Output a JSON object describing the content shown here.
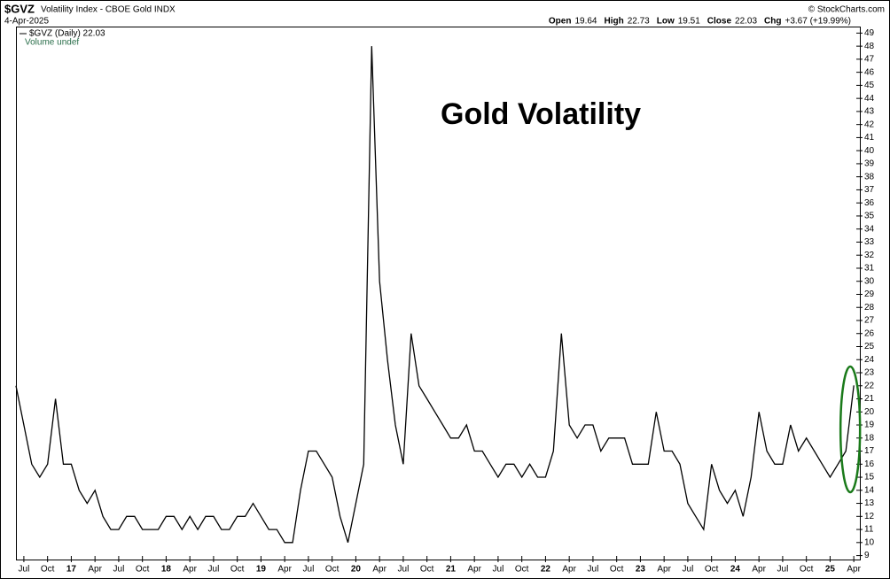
{
  "chart_data": {
    "type": "line",
    "symbol": "$GVZ",
    "name": "Volatility Index - CBOE Gold INDX",
    "date": "4-Apr-2025",
    "source": "© StockCharts.com",
    "quote": [
      {
        "label": "Open",
        "value": "19.64"
      },
      {
        "label": "High",
        "value": "22.73"
      },
      {
        "label": "Low",
        "value": "19.51"
      },
      {
        "label": "Close",
        "value": "22.03"
      },
      {
        "label": "Chg",
        "value": "+3.67 (+19.99%)"
      }
    ],
    "legend": [
      "$GVZ (Daily) 22.03",
      "Volume undef"
    ],
    "annotation": "Gold Volatility",
    "x": [
      "2016-06",
      "2016-07",
      "2016-08",
      "2016-09",
      "2016-10",
      "2016-11",
      "2016-12",
      "2017-01",
      "2017-02",
      "2017-03",
      "2017-04",
      "2017-05",
      "2017-06",
      "2017-07",
      "2017-08",
      "2017-09",
      "2017-10",
      "2017-11",
      "2017-12",
      "2018-01",
      "2018-02",
      "2018-03",
      "2018-04",
      "2018-05",
      "2018-06",
      "2018-07",
      "2018-08",
      "2018-09",
      "2018-10",
      "2018-11",
      "2018-12",
      "2019-01",
      "2019-02",
      "2019-03",
      "2019-04",
      "2019-05",
      "2019-06",
      "2019-07",
      "2019-08",
      "2019-09",
      "2019-10",
      "2019-11",
      "2019-12",
      "2020-01",
      "2020-02",
      "2020-03",
      "2020-04",
      "2020-05",
      "2020-06",
      "2020-07",
      "2020-08",
      "2020-09",
      "2020-10",
      "2020-11",
      "2020-12",
      "2021-01",
      "2021-02",
      "2021-03",
      "2021-04",
      "2021-05",
      "2021-06",
      "2021-07",
      "2021-08",
      "2021-09",
      "2021-10",
      "2021-11",
      "2021-12",
      "2022-01",
      "2022-02",
      "2022-03",
      "2022-04",
      "2022-05",
      "2022-06",
      "2022-07",
      "2022-08",
      "2022-09",
      "2022-10",
      "2022-11",
      "2022-12",
      "2023-01",
      "2023-02",
      "2023-03",
      "2023-04",
      "2023-05",
      "2023-06",
      "2023-07",
      "2023-08",
      "2023-09",
      "2023-10",
      "2023-11",
      "2023-12",
      "2024-01",
      "2024-02",
      "2024-03",
      "2024-04",
      "2024-05",
      "2024-06",
      "2024-07",
      "2024-08",
      "2024-09",
      "2024-10",
      "2024-11",
      "2024-12",
      "2025-01",
      "2025-02",
      "2025-03",
      "2025-04"
    ],
    "series": [
      {
        "name": "$GVZ",
        "color": "#000000",
        "values": [
          22,
          19,
          16,
          15,
          16,
          21,
          16,
          16,
          14,
          13,
          14,
          12,
          11,
          11,
          12,
          12,
          11,
          11,
          11,
          12,
          12,
          11,
          12,
          11,
          12,
          12,
          11,
          11,
          12,
          12,
          13,
          12,
          11,
          11,
          10,
          10,
          14,
          17,
          17,
          16,
          15,
          12,
          10,
          13,
          16,
          48,
          30,
          24,
          19,
          16,
          26,
          22,
          21,
          20,
          19,
          18,
          18,
          19,
          17,
          17,
          16,
          15,
          16,
          16,
          15,
          16,
          15,
          15,
          17,
          26,
          19,
          18,
          19,
          19,
          17,
          18,
          18,
          18,
          16,
          16,
          16,
          20,
          17,
          17,
          16,
          13,
          12,
          11,
          16,
          14,
          13,
          14,
          12,
          15,
          20,
          17,
          16,
          16,
          19,
          17,
          18,
          17,
          16,
          15,
          16,
          17,
          22.03
        ]
      }
    ],
    "ylim": [
      8.7,
      49.5
    ],
    "yticks": [
      9,
      10,
      11,
      12,
      13,
      14,
      15,
      16,
      17,
      18,
      19,
      20,
      21,
      22,
      23,
      24,
      25,
      26,
      27,
      28,
      29,
      30,
      31,
      32,
      33,
      34,
      35,
      36,
      37,
      38,
      39,
      40,
      41,
      42,
      43,
      44,
      45,
      46,
      47,
      48,
      49
    ],
    "xticks": [
      {
        "value": "2016-07",
        "label": "Jul"
      },
      {
        "value": "2016-10",
        "label": "Oct"
      },
      {
        "value": "2017-01",
        "label": "17"
      },
      {
        "value": "2017-04",
        "label": "Apr"
      },
      {
        "value": "2017-07",
        "label": "Jul"
      },
      {
        "value": "2017-10",
        "label": "Oct"
      },
      {
        "value": "2018-01",
        "label": "18"
      },
      {
        "value": "2018-04",
        "label": "Apr"
      },
      {
        "value": "2018-07",
        "label": "Jul"
      },
      {
        "value": "2018-10",
        "label": "Oct"
      },
      {
        "value": "2019-01",
        "label": "19"
      },
      {
        "value": "2019-04",
        "label": "Apr"
      },
      {
        "value": "2019-07",
        "label": "Jul"
      },
      {
        "value": "2019-10",
        "label": "Oct"
      },
      {
        "value": "2020-01",
        "label": "20"
      },
      {
        "value": "2020-04",
        "label": "Apr"
      },
      {
        "value": "2020-07",
        "label": "Jul"
      },
      {
        "value": "2020-10",
        "label": "Oct"
      },
      {
        "value": "2021-01",
        "label": "21"
      },
      {
        "value": "2021-04",
        "label": "Apr"
      },
      {
        "value": "2021-07",
        "label": "Jul"
      },
      {
        "value": "2021-10",
        "label": "Oct"
      },
      {
        "value": "2022-01",
        "label": "22"
      },
      {
        "value": "2022-04",
        "label": "Apr"
      },
      {
        "value": "2022-07",
        "label": "Jul"
      },
      {
        "value": "2022-10",
        "label": "Oct"
      },
      {
        "value": "2023-01",
        "label": "23"
      },
      {
        "value": "2023-04",
        "label": "Apr"
      },
      {
        "value": "2023-07",
        "label": "Jul"
      },
      {
        "value": "2023-10",
        "label": "Oct"
      },
      {
        "value": "2024-01",
        "label": "24"
      },
      {
        "value": "2024-04",
        "label": "Apr"
      },
      {
        "value": "2024-07",
        "label": "Jul"
      },
      {
        "value": "2024-10",
        "label": "Oct"
      },
      {
        "value": "2025-01",
        "label": "25"
      },
      {
        "value": "2025-04",
        "label": "Apr"
      }
    ],
    "grid": false,
    "highlight_color": "#1a7a1a"
  }
}
